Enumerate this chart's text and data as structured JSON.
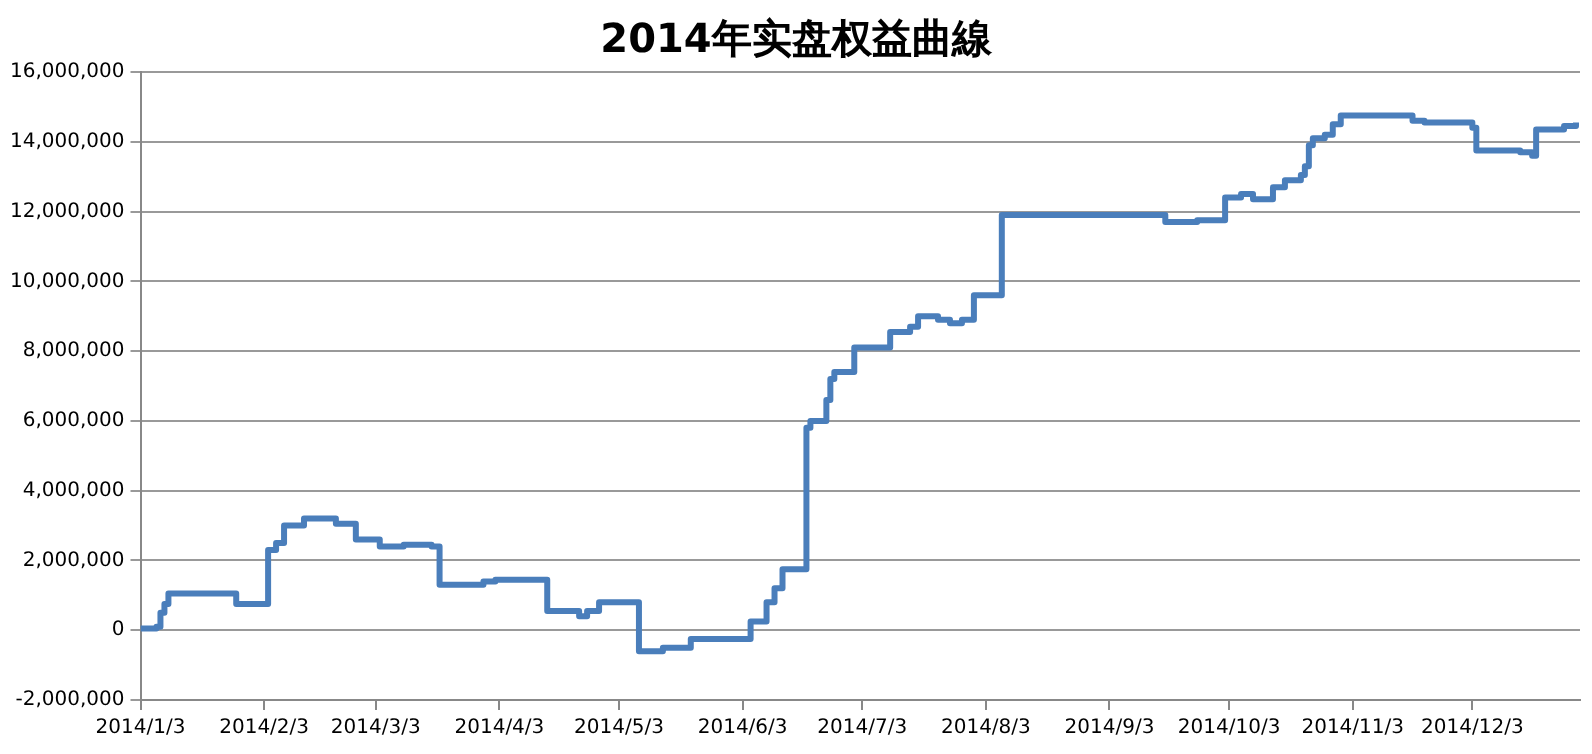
{
  "chart_data": {
    "type": "step",
    "title": "2014年实盘权益曲線",
    "xlim": [
      "2014-01-03",
      "2014-12-30"
    ],
    "xticks": [
      {
        "value": "2014-01-03",
        "label": "2014/1/3"
      },
      {
        "value": "2014-02-03",
        "label": "2014/2/3"
      },
      {
        "value": "2014-03-03",
        "label": "2014/3/3"
      },
      {
        "value": "2014-04-03",
        "label": "2014/4/3"
      },
      {
        "value": "2014-05-03",
        "label": "2014/5/3"
      },
      {
        "value": "2014-06-03",
        "label": "2014/6/3"
      },
      {
        "value": "2014-07-03",
        "label": "2014/7/3"
      },
      {
        "value": "2014-08-03",
        "label": "2014/8/3"
      },
      {
        "value": "2014-09-03",
        "label": "2014/9/3"
      },
      {
        "value": "2014-10-03",
        "label": "2014/10/3"
      },
      {
        "value": "2014-11-03",
        "label": "2014/11/3"
      },
      {
        "value": "2014-12-03",
        "label": "2014/12/3"
      }
    ],
    "ylim": [
      -2000000,
      16000000
    ],
    "yticks": [
      {
        "value": -2000000,
        "label": "-2,000,000"
      },
      {
        "value": 0,
        "label": "0"
      },
      {
        "value": 2000000,
        "label": "2,000,000"
      },
      {
        "value": 4000000,
        "label": "4,000,000"
      },
      {
        "value": 6000000,
        "label": "6,000,000"
      },
      {
        "value": 8000000,
        "label": "8,000,000"
      },
      {
        "value": 10000000,
        "label": "10,000,000"
      },
      {
        "value": 12000000,
        "label": "12,000,000"
      },
      {
        "value": 14000000,
        "label": "14,000,000"
      },
      {
        "value": 16000000,
        "label": "16,000,000"
      }
    ],
    "grid": "y",
    "series": [
      {
        "color": "#4a7ebb",
        "x": [
          "2014-01-03",
          "2014-01-07",
          "2014-01-08",
          "2014-01-09",
          "2014-01-10",
          "2014-01-27",
          "2014-02-04",
          "2014-02-06",
          "2014-02-08",
          "2014-02-13",
          "2014-02-21",
          "2014-02-26",
          "2014-03-04",
          "2014-03-10",
          "2014-03-17",
          "2014-03-19",
          "2014-03-30",
          "2014-04-02",
          "2014-04-15",
          "2014-04-23",
          "2014-04-25",
          "2014-04-28",
          "2014-05-08",
          "2014-05-14",
          "2014-05-21",
          "2014-06-05",
          "2014-06-09",
          "2014-06-11",
          "2014-06-13",
          "2014-06-19",
          "2014-06-20",
          "2014-06-24",
          "2014-06-25",
          "2014-06-26",
          "2014-07-01",
          "2014-07-10",
          "2014-07-15",
          "2014-07-17",
          "2014-07-22",
          "2014-07-25",
          "2014-07-28",
          "2014-07-31",
          "2014-08-07",
          "2014-09-17",
          "2014-09-25",
          "2014-10-02",
          "2014-10-06",
          "2014-10-09",
          "2014-10-14",
          "2014-10-17",
          "2014-10-21",
          "2014-10-22",
          "2014-10-23",
          "2014-10-24",
          "2014-10-27",
          "2014-10-29",
          "2014-10-31",
          "2014-11-18",
          "2014-11-21",
          "2014-12-03",
          "2014-12-04",
          "2014-12-15",
          "2014-12-18",
          "2014-12-19",
          "2014-12-26",
          "2014-12-29"
        ],
        "values": [
          50000,
          100000,
          500000,
          750000,
          1050000,
          750000,
          2300000,
          2500000,
          3000000,
          3200000,
          3050000,
          2600000,
          2400000,
          2450000,
          2400000,
          1300000,
          1400000,
          1450000,
          550000,
          400000,
          550000,
          800000,
          -600000,
          -500000,
          -250000,
          250000,
          800000,
          1200000,
          1750000,
          5800000,
          6000000,
          6600000,
          7200000,
          7400000,
          8100000,
          8550000,
          8700000,
          9000000,
          8900000,
          8800000,
          8900000,
          9600000,
          11900000,
          11700000,
          11750000,
          12400000,
          12500000,
          12350000,
          12700000,
          12900000,
          13050000,
          13300000,
          13900000,
          14100000,
          14200000,
          14500000,
          14750000,
          14600000,
          14550000,
          14400000,
          13750000,
          13700000,
          13600000,
          14350000,
          14450000,
          14550000
        ]
      }
    ]
  }
}
